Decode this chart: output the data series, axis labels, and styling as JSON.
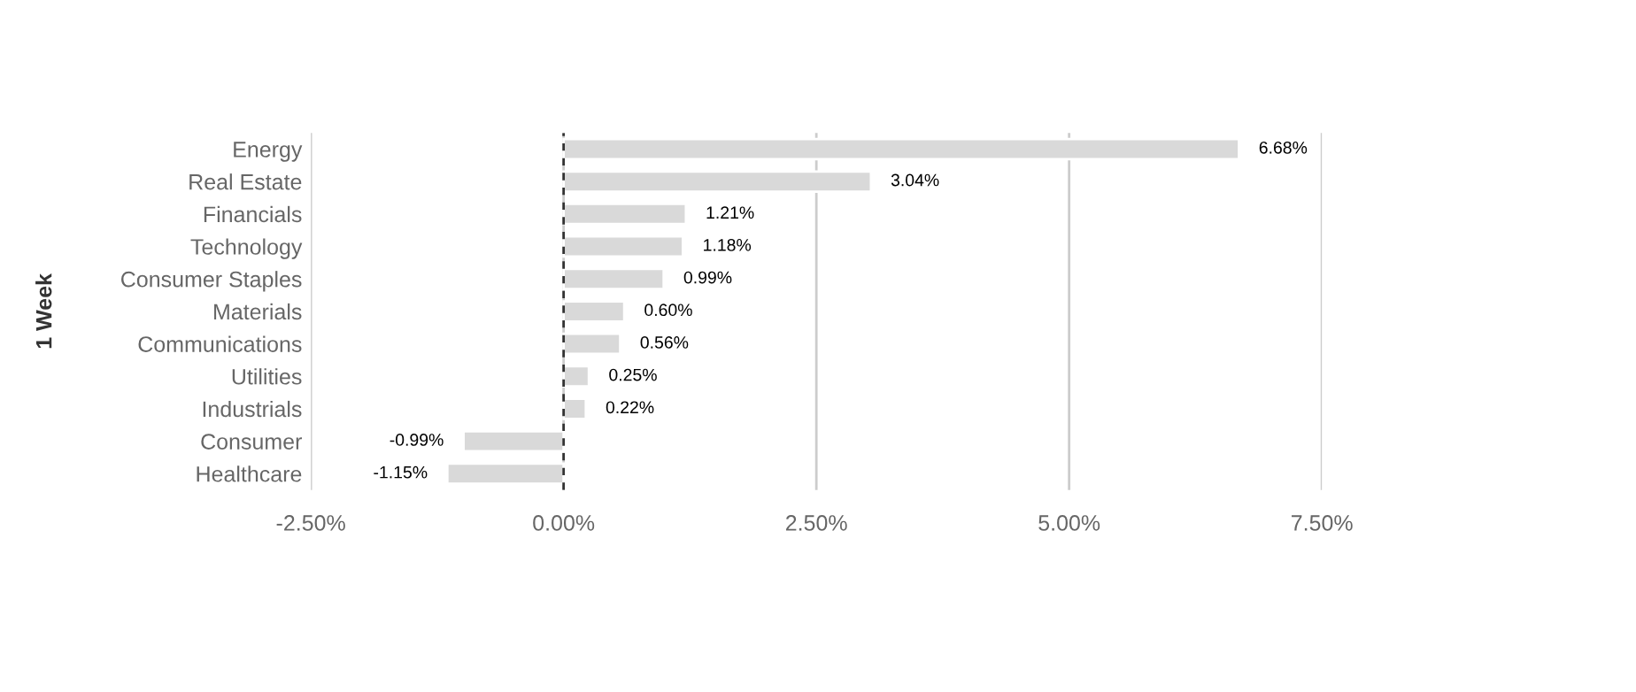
{
  "chart_data": {
    "type": "bar",
    "orientation": "horizontal",
    "ylabel": "1 Week",
    "categories": [
      "Energy",
      "Real Estate",
      "Financials",
      "Technology",
      "Consumer Staples",
      "Materials",
      "Communications",
      "Utilities",
      "Industrials",
      "Consumer",
      "Healthcare"
    ],
    "values": [
      6.68,
      3.04,
      1.21,
      1.18,
      0.99,
      0.6,
      0.56,
      0.25,
      0.22,
      -0.99,
      -1.15
    ],
    "value_labels": [
      "6.68%",
      "3.04%",
      "1.21%",
      "1.18%",
      "0.99%",
      "0.60%",
      "0.56%",
      "0.25%",
      "0.22%",
      "-0.99%",
      "-1.15%"
    ],
    "color": "#d9d9d9",
    "xlim": [
      -2.5,
      7.5
    ],
    "xticks": [
      {
        "value": -2.5,
        "label": "-2.50%"
      },
      {
        "value": 0,
        "label": "0.00%"
      },
      {
        "value": 2.5,
        "label": "2.50%"
      },
      {
        "value": 5,
        "label": "5.00%"
      },
      {
        "value": 7.5,
        "label": "7.50%"
      }
    ],
    "grid": "x",
    "legend": false,
    "ref_lines": [
      {
        "axis": "x",
        "value": 0,
        "color": "#333333",
        "line_style": "dashed"
      }
    ]
  }
}
